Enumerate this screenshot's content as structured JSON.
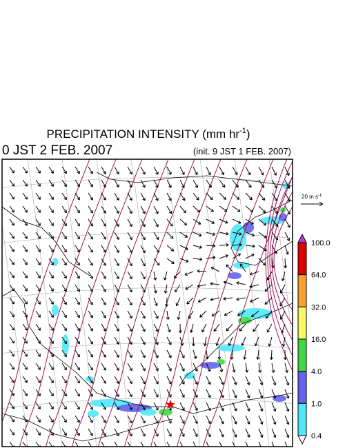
{
  "title": {
    "main": "PRECIPITATION INTENSITY (mm hr",
    "exponent": "-1",
    "close": ")"
  },
  "valid_time": "0 JST 2 FEB. 2007",
  "init_time": "(init. 9 JST 1 FEB. 2007)",
  "reference_vector": {
    "label": "20 m s",
    "exponent": "-1"
  },
  "colorbar": {
    "labels": [
      "100.0",
      "64.0",
      "32.0",
      "16.0",
      "4.0",
      "1.0",
      "0.4"
    ],
    "colors": [
      "#e00000",
      "#f7a030",
      "#f8f860",
      "#40d840",
      "#6464f0",
      "#50e8f8"
    ],
    "over_color": "#b040e0",
    "under_color": "#ffffff"
  }
}
